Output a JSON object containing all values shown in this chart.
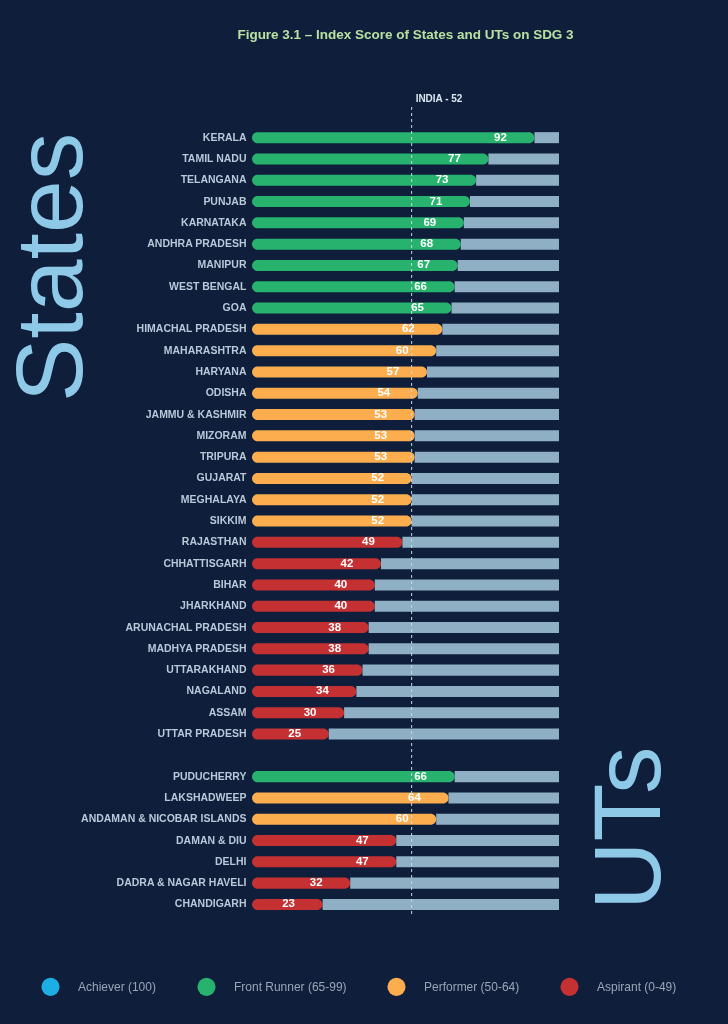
{
  "chart_data": {
    "type": "bar",
    "orientation": "horizontal",
    "title": "Figure 3.1 – Index Score of States and UTs on SDG 3",
    "ylabel": "States",
    "y2label": "UTs",
    "categories": [
      "KERALA",
      "TAMIL NADU",
      "TELANGANA",
      "PUNJAB",
      "KARNATAKA",
      "ANDHRA PRADESH",
      "MANIPUR",
      "WEST BENGAL",
      "GOA",
      "HIMACHAL PRADESH",
      "MAHARASHTRA",
      "HARYANA",
      "ODISHA",
      "JAMMU & KASHMIR",
      "MIZORAM",
      "TRIPURA",
      "GUJARAT",
      "MEGHALAYA",
      "SIKKIM",
      "RAJASTHAN",
      "CHHATTISGARH",
      "BIHAR",
      "JHARKHAND",
      "ARUNACHAL PRADESH",
      "MADHYA PRADESH",
      "UTTARAKHAND",
      "NAGALAND",
      "ASSAM",
      "UTTAR PRADESH",
      null,
      "PUDUCHERRY",
      "LAKSHADWEEP",
      "ANDAMAN & NICOBAR ISLANDS",
      "DAMAN & DIU",
      "DELHI",
      "DADRA & NAGAR HAVELI",
      "CHANDIGARH"
    ],
    "series": [
      {
        "name": "Achiever (100)",
        "color": "#1eaee6",
        "values": [
          null,
          null,
          null,
          null,
          null,
          null,
          null,
          null,
          null,
          null,
          null,
          null,
          null,
          null,
          null,
          null,
          null,
          null,
          null,
          null,
          null,
          null,
          null,
          null,
          null,
          null,
          null,
          null,
          null,
          null,
          null,
          null,
          null,
          null,
          null,
          null,
          null
        ]
      },
      {
        "name": "Front Runner (65-99)",
        "color": "#27b36e",
        "values": [
          92,
          77,
          73,
          71,
          69,
          68,
          67,
          66,
          65,
          null,
          null,
          null,
          null,
          null,
          null,
          null,
          null,
          null,
          null,
          null,
          null,
          null,
          null,
          null,
          null,
          null,
          null,
          null,
          null,
          null,
          66,
          null,
          null,
          null,
          null,
          null,
          null
        ],
        "value_labels": [
          "92",
          "77",
          "73",
          "71",
          "69",
          "68",
          "67",
          "66",
          "65",
          null,
          null,
          null,
          null,
          null,
          null,
          null,
          null,
          null,
          null,
          null,
          null,
          null,
          null,
          null,
          null,
          null,
          null,
          null,
          null,
          null,
          "66",
          null,
          null,
          null,
          null,
          null,
          null
        ]
      },
      {
        "name": "Performer (50-64)",
        "color": "#fcae4f",
        "values": [
          null,
          null,
          null,
          null,
          null,
          null,
          null,
          null,
          null,
          62,
          60,
          57,
          54,
          53,
          53,
          53,
          52,
          52,
          52,
          null,
          null,
          null,
          null,
          null,
          null,
          null,
          null,
          null,
          null,
          null,
          null,
          64,
          60,
          null,
          null,
          null,
          null
        ],
        "value_labels": [
          null,
          null,
          null,
          null,
          null,
          null,
          null,
          null,
          null,
          "62",
          "60",
          "57",
          "54",
          "53",
          "53",
          "53",
          "52",
          "52",
          "52",
          null,
          null,
          null,
          null,
          null,
          null,
          null,
          null,
          null,
          null,
          null,
          null,
          "64",
          "60",
          null,
          null,
          null,
          null
        ]
      },
      {
        "name": "Aspirant (0-49)",
        "color": "#c53032",
        "values": [
          null,
          null,
          null,
          null,
          null,
          null,
          null,
          null,
          null,
          null,
          null,
          null,
          null,
          null,
          null,
          null,
          null,
          null,
          null,
          49,
          42,
          40,
          40,
          38,
          38,
          36,
          34,
          30,
          25,
          null,
          null,
          null,
          null,
          47,
          47,
          32,
          23
        ],
        "value_labels": [
          null,
          null,
          null,
          null,
          null,
          null,
          null,
          null,
          null,
          null,
          null,
          null,
          null,
          null,
          null,
          null,
          null,
          null,
          null,
          "49",
          "42",
          "40",
          "40",
          "38",
          "38",
          "36",
          "34",
          "30",
          "25",
          null,
          null,
          null,
          null,
          "47",
          "47",
          "32",
          "23"
        ]
      },
      {
        "color": "#8fb0c4",
        "values": [
          8,
          23,
          27,
          29,
          31,
          32,
          33,
          34,
          35,
          38,
          40,
          43,
          46,
          47,
          47,
          47,
          48,
          48,
          48,
          51,
          58,
          60,
          60,
          62,
          62,
          64,
          66,
          70,
          75,
          null,
          34,
          36,
          40,
          53,
          53,
          68,
          77
        ]
      }
    ],
    "xlim": [
      0,
      100
    ],
    "tick_labels": "y",
    "legend": "bottom",
    "stacked": true,
    "ref_lines": [
      {
        "axis": "x",
        "value": 52,
        "label": "INDIA - 52",
        "line_style": "dashed"
      }
    ]
  }
}
